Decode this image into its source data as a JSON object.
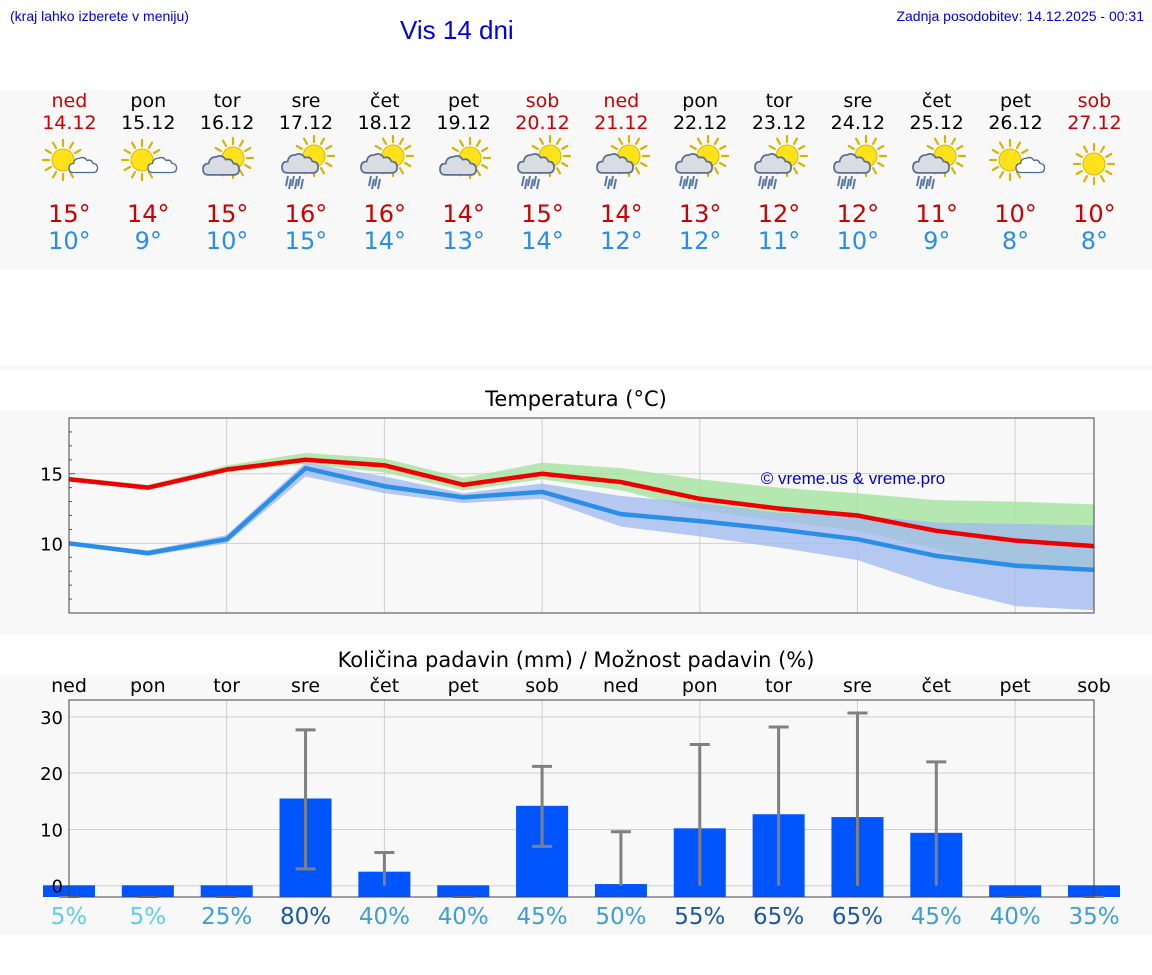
{
  "header": {
    "left_note": "(kraj lahko izberete v meniju)",
    "title": "Vis 14 dni",
    "updated": "Zadnja posodobitev: 14.12.2025 - 00:31"
  },
  "colors": {
    "link_blue": "#0000dd",
    "high_red": "#cc0000",
    "low_blue": "#2a8ee8",
    "bar_blue": "#0055ff",
    "error_gray": "#808080",
    "band_green": "#9fe39a",
    "band_blue": "#9fb8f0"
  },
  "days": [
    {
      "name": "ned",
      "date": "14.12",
      "hi": "15°",
      "lo": "10°",
      "weekend": true,
      "icon": "sun-cloud-icon"
    },
    {
      "name": "pon",
      "date": "15.12",
      "hi": "14°",
      "lo": "9°",
      "weekend": false,
      "icon": "sun-cloud-icon"
    },
    {
      "name": "tor",
      "date": "16.12",
      "hi": "15°",
      "lo": "10°",
      "weekend": false,
      "icon": "cloud-sun-icon"
    },
    {
      "name": "sre",
      "date": "17.12",
      "hi": "16°",
      "lo": "15°",
      "weekend": false,
      "icon": "rain-sun-icon"
    },
    {
      "name": "čet",
      "date": "18.12",
      "hi": "16°",
      "lo": "14°",
      "weekend": false,
      "icon": "shower-sun-icon"
    },
    {
      "name": "pet",
      "date": "19.12",
      "hi": "14°",
      "lo": "13°",
      "weekend": false,
      "icon": "cloud-sun-icon"
    },
    {
      "name": "sob",
      "date": "20.12",
      "hi": "15°",
      "lo": "14°",
      "weekend": true,
      "icon": "rain-sun-icon"
    },
    {
      "name": "ned",
      "date": "21.12",
      "hi": "14°",
      "lo": "12°",
      "weekend": true,
      "icon": "shower-sun-icon"
    },
    {
      "name": "pon",
      "date": "22.12",
      "hi": "13°",
      "lo": "12°",
      "weekend": false,
      "icon": "rain-sun-icon"
    },
    {
      "name": "tor",
      "date": "23.12",
      "hi": "12°",
      "lo": "11°",
      "weekend": false,
      "icon": "rain-sun-icon"
    },
    {
      "name": "sre",
      "date": "24.12",
      "hi": "12°",
      "lo": "10°",
      "weekend": false,
      "icon": "rain-sun-icon"
    },
    {
      "name": "čet",
      "date": "25.12",
      "hi": "11°",
      "lo": "9°",
      "weekend": false,
      "icon": "rain-sun-icon"
    },
    {
      "name": "pet",
      "date": "26.12",
      "hi": "10°",
      "lo": "8°",
      "weekend": false,
      "icon": "sun-cloud-icon"
    },
    {
      "name": "sob",
      "date": "27.12",
      "hi": "10°",
      "lo": "8°",
      "weekend": true,
      "icon": "sun-icon"
    }
  ],
  "chart_data": [
    {
      "type": "line",
      "title": "Temperatura (°C)",
      "watermark": "© vreme.us & vreme.pro",
      "x_index": [
        0,
        1,
        2,
        3,
        4,
        5,
        6,
        7,
        8,
        9,
        10,
        11,
        12,
        13
      ],
      "ylim": [
        5,
        19
      ],
      "yticks": [
        10,
        15
      ],
      "series": [
        {
          "name": "max",
          "color": "#ee0000",
          "values": [
            14.6,
            14.0,
            15.3,
            16.0,
            15.6,
            14.2,
            15.0,
            14.4,
            13.2,
            12.5,
            12.0,
            10.9,
            10.2,
            9.8
          ]
        },
        {
          "name": "min",
          "color": "#2a8ee8",
          "values": [
            10.0,
            9.3,
            10.3,
            15.4,
            14.1,
            13.3,
            13.7,
            12.1,
            11.6,
            11.0,
            10.3,
            9.1,
            8.4,
            8.1
          ]
        }
      ],
      "bands": [
        {
          "name": "max range",
          "color": "#9fe39a",
          "lower": [
            14.5,
            13.9,
            15.1,
            15.7,
            15.1,
            13.8,
            14.6,
            13.8,
            12.4,
            11.6,
            10.9,
            9.6,
            8.2,
            8.0
          ],
          "upper": [
            14.8,
            14.2,
            15.6,
            16.5,
            16.1,
            14.7,
            15.8,
            15.4,
            14.6,
            14.0,
            13.6,
            13.1,
            13.0,
            12.8
          ]
        },
        {
          "name": "min range",
          "color": "#9fb8f0",
          "lower": [
            9.9,
            9.1,
            10.0,
            14.8,
            13.6,
            12.9,
            13.2,
            11.2,
            10.5,
            9.7,
            8.8,
            6.9,
            5.5,
            5.2
          ],
          "upper": [
            10.1,
            9.5,
            10.6,
            15.8,
            14.8,
            13.6,
            14.3,
            13.4,
            12.9,
            12.2,
            12.0,
            11.5,
            11.4,
            11.3
          ]
        }
      ]
    },
    {
      "type": "bar",
      "title": "Količina padavin (mm) / Možnost padavin (%)",
      "categories": [
        "ned",
        "pon",
        "tor",
        "sre",
        "čet",
        "pet",
        "sob",
        "ned",
        "pon",
        "tor",
        "sre",
        "čet",
        "pet",
        "sob"
      ],
      "values": [
        0,
        0,
        0,
        15.5,
        2.5,
        0,
        14.2,
        0.3,
        10.2,
        12.7,
        12.2,
        9.4,
        0,
        0
      ],
      "error_low": [
        0,
        0,
        0,
        3.0,
        0,
        0,
        7.0,
        0,
        0,
        0,
        0,
        0,
        0,
        0
      ],
      "error_high": [
        0,
        0,
        0,
        27.7,
        5.9,
        0,
        21.2,
        9.6,
        25.1,
        28.2,
        30.7,
        22.0,
        0,
        0
      ],
      "ylim": [
        -2,
        33
      ],
      "yticks": [
        0,
        10,
        20,
        30
      ],
      "probability": [
        "5%",
        "5%",
        "25%",
        "80%",
        "40%",
        "40%",
        "45%",
        "50%",
        "55%",
        "65%",
        "65%",
        "45%",
        "40%",
        "35%"
      ],
      "probability_colors": [
        "#5ccfe6",
        "#5ccfe6",
        "#3d9fd6",
        "#1a5aa3",
        "#3d9fd6",
        "#3d9fd6",
        "#3d9fd6",
        "#3d9fd6",
        "#1a5aa3",
        "#1a5aa3",
        "#1a5aa3",
        "#3d9fd6",
        "#3d9fd6",
        "#3d9fd6"
      ]
    }
  ]
}
